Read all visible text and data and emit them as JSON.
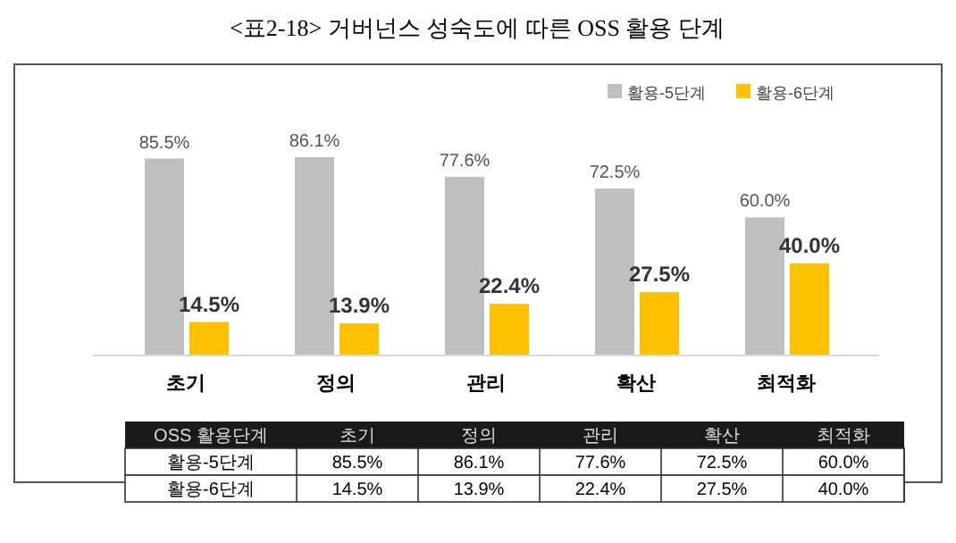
{
  "chart_data": {
    "type": "bar",
    "title": "<표2-18> 거버넌스 성숙도에 따른 OSS 활용 단계",
    "categories": [
      "초기",
      "정의",
      "관리",
      "확산",
      "최적화"
    ],
    "series": [
      {
        "name": "활용-5단계",
        "color": "#bfbfbf",
        "values": [
          85.5,
          86.1,
          77.6,
          72.5,
          60.0
        ],
        "value_labels": [
          "85.5%",
          "86.1%",
          "77.6%",
          "72.5%",
          "60.0%"
        ]
      },
      {
        "name": "활용-6단계",
        "color": "#ffc000",
        "values": [
          14.5,
          13.9,
          22.4,
          27.5,
          40.0
        ],
        "value_labels": [
          "14.5%",
          "13.9%",
          "22.4%",
          "27.5%",
          "40.0%"
        ]
      }
    ],
    "legend": "top right",
    "annotations": [
      "OSS 활용단계"
    ]
  }
}
